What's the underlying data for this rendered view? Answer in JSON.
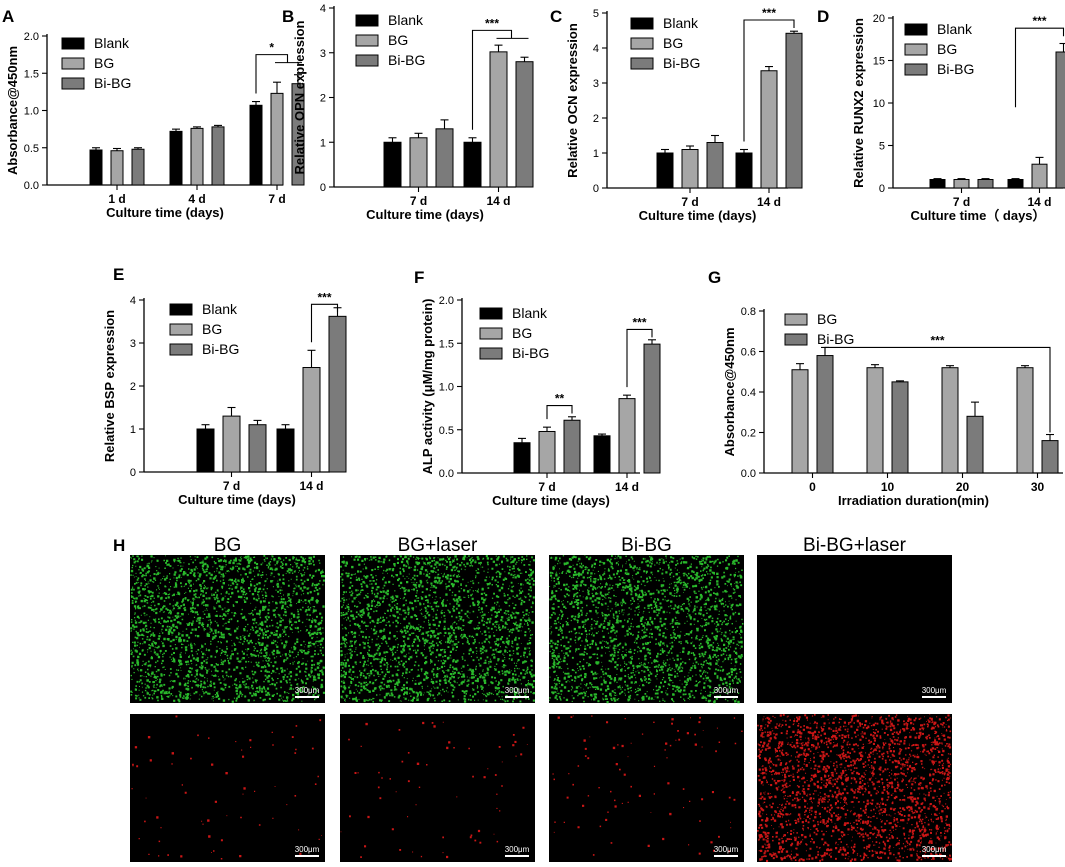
{
  "colors": {
    "Blank": "#000000",
    "BG": "#a6a6a6",
    "Bi-BG": "#7b7b7b"
  },
  "chart_data": [
    {
      "id": "A",
      "type": "bar",
      "panel_label": "A",
      "ylabel": "Absorbance@450nm",
      "xlabel": "Culture time (days)",
      "categories": [
        "1 d",
        "4 d",
        "7 d"
      ],
      "ylim": [
        0,
        2.0
      ],
      "yticks": [
        "0.0",
        "0.5",
        "1.0",
        "1.5",
        "2.0"
      ],
      "legend": [
        "Blank",
        "BG",
        "Bi-BG"
      ],
      "legend_position": "top-left",
      "series": [
        {
          "name": "Blank",
          "values": [
            0.47,
            0.72,
            1.07
          ],
          "errors": [
            0.03,
            0.03,
            0.05
          ]
        },
        {
          "name": "BG",
          "values": [
            0.46,
            0.76,
            1.23
          ],
          "errors": [
            0.03,
            0.02,
            0.15
          ]
        },
        {
          "name": "Bi-BG",
          "values": [
            0.48,
            0.78,
            1.36
          ],
          "errors": [
            0.02,
            0.02,
            0.12
          ]
        }
      ],
      "significance": [
        {
          "label": "*",
          "category": 2,
          "from": 0,
          "to": [
            1,
            2
          ],
          "y": 1.75
        }
      ]
    },
    {
      "id": "B",
      "type": "bar",
      "panel_label": "B",
      "ylabel": "Relative OPN expression",
      "xlabel": "Culture time (days)",
      "categories": [
        "7 d",
        "14 d"
      ],
      "ylim": [
        0,
        4
      ],
      "yticks": [
        "0",
        "1",
        "2",
        "3",
        "4"
      ],
      "legend": [
        "Blank",
        "BG",
        "Bi-BG"
      ],
      "legend_position": "top-left",
      "series": [
        {
          "name": "Blank",
          "values": [
            1.0,
            1.0
          ],
          "errors": [
            0.1,
            0.1
          ]
        },
        {
          "name": "BG",
          "values": [
            1.1,
            3.02
          ],
          "errors": [
            0.1,
            0.15
          ]
        },
        {
          "name": "Bi-BG",
          "values": [
            1.3,
            2.8
          ],
          "errors": [
            0.2,
            0.1
          ]
        }
      ],
      "significance": [
        {
          "label": "***",
          "category": 1,
          "from": 0,
          "to": [
            1,
            2
          ],
          "y": 3.5
        }
      ]
    },
    {
      "id": "C",
      "type": "bar",
      "panel_label": "C",
      "ylabel": "Relative OCN expression",
      "xlabel": "Culture time (days)",
      "categories": [
        "7 d",
        "14 d"
      ],
      "ylim": [
        0,
        5
      ],
      "yticks": [
        "0",
        "1",
        "2",
        "3",
        "4",
        "5"
      ],
      "legend": [
        "Blank",
        "BG",
        "Bi-BG"
      ],
      "legend_position": "top-left",
      "series": [
        {
          "name": "Blank",
          "values": [
            1.0,
            1.0
          ],
          "errors": [
            0.1,
            0.1
          ]
        },
        {
          "name": "BG",
          "values": [
            1.1,
            3.35
          ],
          "errors": [
            0.1,
            0.12
          ]
        },
        {
          "name": "Bi-BG",
          "values": [
            1.3,
            4.42
          ],
          "errors": [
            0.2,
            0.06
          ]
        }
      ],
      "significance": [
        {
          "label": "***",
          "category": 1,
          "from": 0,
          "to": [
            2
          ],
          "y": 4.8
        }
      ]
    },
    {
      "id": "D",
      "type": "bar",
      "panel_label": "D",
      "ylabel": "Relative RUNX2 expression",
      "xlabel": "Culture time（ days）",
      "categories": [
        "7 d",
        "14 d"
      ],
      "ylim": [
        0,
        20
      ],
      "yticks": [
        "0",
        "5",
        "10",
        "15",
        "20"
      ],
      "legend": [
        "Blank",
        "BG",
        "Bi-BG"
      ],
      "legend_position": "top-left",
      "series": [
        {
          "name": "Blank",
          "values": [
            1.0,
            1.0
          ],
          "errors": [
            0.1,
            0.1
          ]
        },
        {
          "name": "BG",
          "values": [
            1.0,
            2.8
          ],
          "errors": [
            0.1,
            0.8
          ]
        },
        {
          "name": "Bi-BG",
          "values": [
            1.0,
            16.0
          ],
          "errors": [
            0.1,
            1.0
          ]
        }
      ],
      "significance": [
        {
          "label": "***",
          "category": 1,
          "from": 0,
          "to": [
            2
          ],
          "y": 18.8,
          "from_y": 9.5
        }
      ]
    },
    {
      "id": "E",
      "type": "bar",
      "panel_label": "E",
      "ylabel": "Relative BSP expression",
      "xlabel": "Culture time (days)",
      "categories": [
        "7 d",
        "14 d"
      ],
      "ylim": [
        0,
        4
      ],
      "yticks": [
        "0",
        "1",
        "2",
        "3",
        "4"
      ],
      "legend": [
        "Blank",
        "BG",
        "Bi-BG"
      ],
      "legend_position": "top-left",
      "series": [
        {
          "name": "Blank",
          "values": [
            1.0,
            1.0
          ],
          "errors": [
            0.1,
            0.1
          ]
        },
        {
          "name": "BG",
          "values": [
            1.3,
            2.43
          ],
          "errors": [
            0.2,
            0.4
          ]
        },
        {
          "name": "Bi-BG",
          "values": [
            1.1,
            3.62
          ],
          "errors": [
            0.1,
            0.2
          ]
        }
      ],
      "significance": [
        {
          "label": "***",
          "category": 1,
          "from": 1,
          "to": [
            2
          ],
          "y": 3.9
        }
      ]
    },
    {
      "id": "F",
      "type": "bar",
      "panel_label": "F",
      "ylabel": "ALP activity (μM/mg protein)",
      "xlabel": "Culture time (days)",
      "categories": [
        "7 d",
        "14 d"
      ],
      "ylim": [
        0,
        2.0
      ],
      "yticks": [
        "0.0",
        "0.5",
        "1.0",
        "1.5",
        "2.0"
      ],
      "legend": [
        "Blank",
        "BG",
        "Bi-BG"
      ],
      "legend_position": "top-left",
      "series": [
        {
          "name": "Blank",
          "values": [
            0.35,
            0.43
          ],
          "errors": [
            0.05,
            0.02
          ]
        },
        {
          "name": "BG",
          "values": [
            0.48,
            0.86
          ],
          "errors": [
            0.05,
            0.04
          ]
        },
        {
          "name": "Bi-BG",
          "values": [
            0.61,
            1.49
          ],
          "errors": [
            0.04,
            0.05
          ]
        }
      ],
      "significance": [
        {
          "label": "**",
          "category": 0,
          "from": 1,
          "to": [
            2
          ],
          "y": 0.78
        },
        {
          "label": "***",
          "category": 1,
          "from": 1,
          "to": [
            2
          ],
          "y": 1.66
        }
      ]
    },
    {
      "id": "G",
      "type": "bar",
      "panel_label": "G",
      "ylabel": "Absorbance@450nm",
      "xlabel": "Irradiation duration(min)",
      "categories": [
        "0",
        "10",
        "20",
        "30"
      ],
      "ylim": [
        0,
        0.8
      ],
      "yticks": [
        "0.0",
        "0.2",
        "0.4",
        "0.6",
        "0.8"
      ],
      "legend": [
        "BG",
        "Bi-BG"
      ],
      "legend_position": "top-left",
      "series": [
        {
          "name": "BG",
          "values": [
            0.51,
            0.52,
            0.52,
            0.52
          ],
          "errors": [
            0.03,
            0.015,
            0.01,
            0.01
          ]
        },
        {
          "name": "Bi-BG",
          "values": [
            0.58,
            0.45,
            0.28,
            0.16
          ],
          "errors": [
            0.04,
            0.005,
            0.07,
            0.03
          ]
        }
      ],
      "significance": [
        {
          "label": "***",
          "span": [
            [
              0,
              1
            ],
            [
              3,
              1
            ]
          ],
          "y": 0.62
        }
      ]
    }
  ],
  "micrographs": {
    "panel_label": "H",
    "columns": [
      "BG",
      "BG+laser",
      "Bi-BG",
      "Bi-BG+laser"
    ],
    "scale_bar": "300μm",
    "rows": [
      {
        "stain": "green",
        "color": "#2ecc30",
        "density": [
          0.9,
          0.9,
          0.9,
          0.0
        ]
      },
      {
        "stain": "red",
        "color": "#e01818",
        "density": [
          0.02,
          0.02,
          0.03,
          0.9
        ]
      }
    ]
  }
}
